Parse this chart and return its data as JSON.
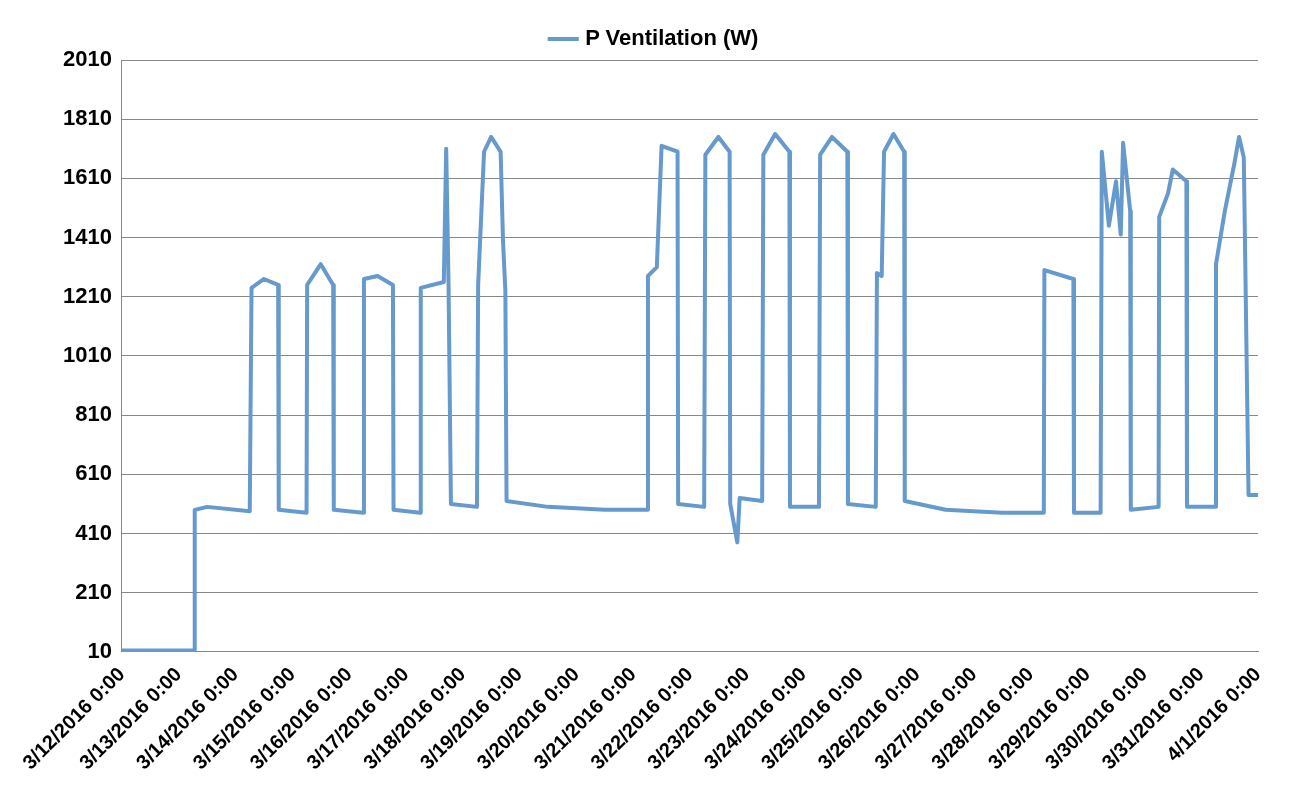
{
  "chart_data": {
    "type": "line",
    "legend": "top",
    "grid": "y",
    "marker": "none",
    "line_style": "solid",
    "xlim": [
      "2016-03-12T00:00",
      "2016-04-01T00:00"
    ],
    "xticks": [
      {
        "value": "2016-03-12T00:00",
        "label": "3/12/2016 0:00"
      },
      {
        "value": "2016-03-13T00:00",
        "label": "3/13/2016 0:00"
      },
      {
        "value": "2016-03-14T00:00",
        "label": "3/14/2016 0:00"
      },
      {
        "value": "2016-03-15T00:00",
        "label": "3/15/2016 0:00"
      },
      {
        "value": "2016-03-16T00:00",
        "label": "3/16/2016 0:00"
      },
      {
        "value": "2016-03-17T00:00",
        "label": "3/17/2016 0:00"
      },
      {
        "value": "2016-03-18T00:00",
        "label": "3/18/2016 0:00"
      },
      {
        "value": "2016-03-19T00:00",
        "label": "3/19/2016 0:00"
      },
      {
        "value": "2016-03-20T00:00",
        "label": "3/20/2016 0:00"
      },
      {
        "value": "2016-03-21T00:00",
        "label": "3/21/2016 0:00"
      },
      {
        "value": "2016-03-22T00:00",
        "label": "3/22/2016 0:00"
      },
      {
        "value": "2016-03-23T00:00",
        "label": "3/23/2016 0:00"
      },
      {
        "value": "2016-03-24T00:00",
        "label": "3/24/2016 0:00"
      },
      {
        "value": "2016-03-25T00:00",
        "label": "3/25/2016 0:00"
      },
      {
        "value": "2016-03-26T00:00",
        "label": "3/26/2016 0:00"
      },
      {
        "value": "2016-03-27T00:00",
        "label": "3/27/2016 0:00"
      },
      {
        "value": "2016-03-28T00:00",
        "label": "3/28/2016 0:00"
      },
      {
        "value": "2016-03-29T00:00",
        "label": "3/29/2016 0:00"
      },
      {
        "value": "2016-03-30T00:00",
        "label": "3/30/2016 0:00"
      },
      {
        "value": "2016-03-31T00:00",
        "label": "3/31/2016 0:00"
      },
      {
        "value": "2016-04-01T00:00",
        "label": "4/1/2016 0:00"
      }
    ],
    "ylim": [
      10,
      2010
    ],
    "yticks": [
      10,
      210,
      410,
      610,
      810,
      1010,
      1210,
      1410,
      1610,
      1810,
      2010
    ],
    "x": [
      "2016-03-12T00:00",
      "2016-03-13T06:30",
      "2016-03-13T06:45",
      "2016-03-13T12:00",
      "2016-03-14T06:00",
      "2016-03-14T06:45",
      "2016-03-14T12:00",
      "2016-03-14T18:00",
      "2016-03-14T18:15",
      "2016-03-15T06:00",
      "2016-03-15T06:15",
      "2016-03-15T12:00",
      "2016-03-15T17:15",
      "2016-03-15T17:30",
      "2016-03-16T06:00",
      "2016-03-16T06:15",
      "2016-03-16T12:00",
      "2016-03-16T18:30",
      "2016-03-16T18:45",
      "2016-03-17T06:00",
      "2016-03-17T06:15",
      "2016-03-17T16:00",
      "2016-03-17T17:00",
      "2016-03-17T18:00",
      "2016-03-17T19:00",
      "2016-03-18T06:00",
      "2016-03-18T06:30",
      "2016-03-18T09:00",
      "2016-03-18T12:00",
      "2016-03-18T16:00",
      "2016-03-18T17:00",
      "2016-03-18T18:00",
      "2016-03-18T18:30",
      "2016-03-19T12:00",
      "2016-03-20T12:00",
      "2016-03-21T06:00",
      "2016-03-21T06:15",
      "2016-03-21T10:00",
      "2016-03-21T12:00",
      "2016-03-21T18:45",
      "2016-03-21T19:00",
      "2016-03-22T06:00",
      "2016-03-22T06:30",
      "2016-03-22T12:00",
      "2016-03-22T16:45",
      "2016-03-22T17:00",
      "2016-03-22T20:00",
      "2016-03-22T21:00",
      "2016-03-23T06:30",
      "2016-03-23T07:00",
      "2016-03-23T12:00",
      "2016-03-23T18:00",
      "2016-03-23T18:15",
      "2016-03-24T06:30",
      "2016-03-24T07:00",
      "2016-03-24T12:00",
      "2016-03-24T18:30",
      "2016-03-24T18:45",
      "2016-03-25T06:30",
      "2016-03-25T07:00",
      "2016-03-25T09:00",
      "2016-03-25T10:00",
      "2016-03-25T14:00",
      "2016-03-25T18:30",
      "2016-03-25T18:45",
      "2016-03-26T12:00",
      "2016-03-27T12:00",
      "2016-03-28T05:30",
      "2016-03-28T05:45",
      "2016-03-28T18:00",
      "2016-03-28T18:15",
      "2016-03-29T05:30",
      "2016-03-29T06:00",
      "2016-03-29T09:00",
      "2016-03-29T12:00",
      "2016-03-29T14:00",
      "2016-03-29T15:00",
      "2016-03-29T18:00",
      "2016-03-29T18:15",
      "2016-03-30T06:00",
      "2016-03-30T06:15",
      "2016-03-30T10:00",
      "2016-03-30T12:00",
      "2016-03-30T17:45",
      "2016-03-30T18:00",
      "2016-03-31T06:00",
      "2016-03-31T06:15",
      "2016-03-31T10:00",
      "2016-03-31T14:00",
      "2016-03-31T16:00",
      "2016-03-31T18:00",
      "2016-03-31T20:00",
      "2016-04-01T00:00"
    ],
    "series": [
      {
        "name": "P Ventilation (W)",
        "color": "#6699cc",
        "values": [
          15,
          15,
          490,
          500,
          485,
          1240,
          1270,
          1250,
          490,
          480,
          1250,
          1320,
          1250,
          490,
          480,
          1270,
          1280,
          1250,
          490,
          480,
          1240,
          1260,
          1710,
          1250,
          510,
          500,
          1250,
          1700,
          1750,
          1700,
          1400,
          1230,
          520,
          500,
          490,
          490,
          1280,
          1310,
          1720,
          1700,
          510,
          500,
          1690,
          1750,
          1700,
          510,
          380,
          530,
          520,
          1690,
          1760,
          1700,
          500,
          500,
          1690,
          1750,
          1700,
          510,
          500,
          1290,
          1280,
          1700,
          1760,
          1700,
          520,
          490,
          480,
          480,
          1300,
          1270,
          480,
          480,
          1700,
          1450,
          1600,
          1420,
          1730,
          1500,
          490,
          500,
          1480,
          1560,
          1640,
          1600,
          500,
          500,
          1320,
          1500,
          1660,
          1750,
          1680,
          540,
          540
        ]
      }
    ]
  }
}
